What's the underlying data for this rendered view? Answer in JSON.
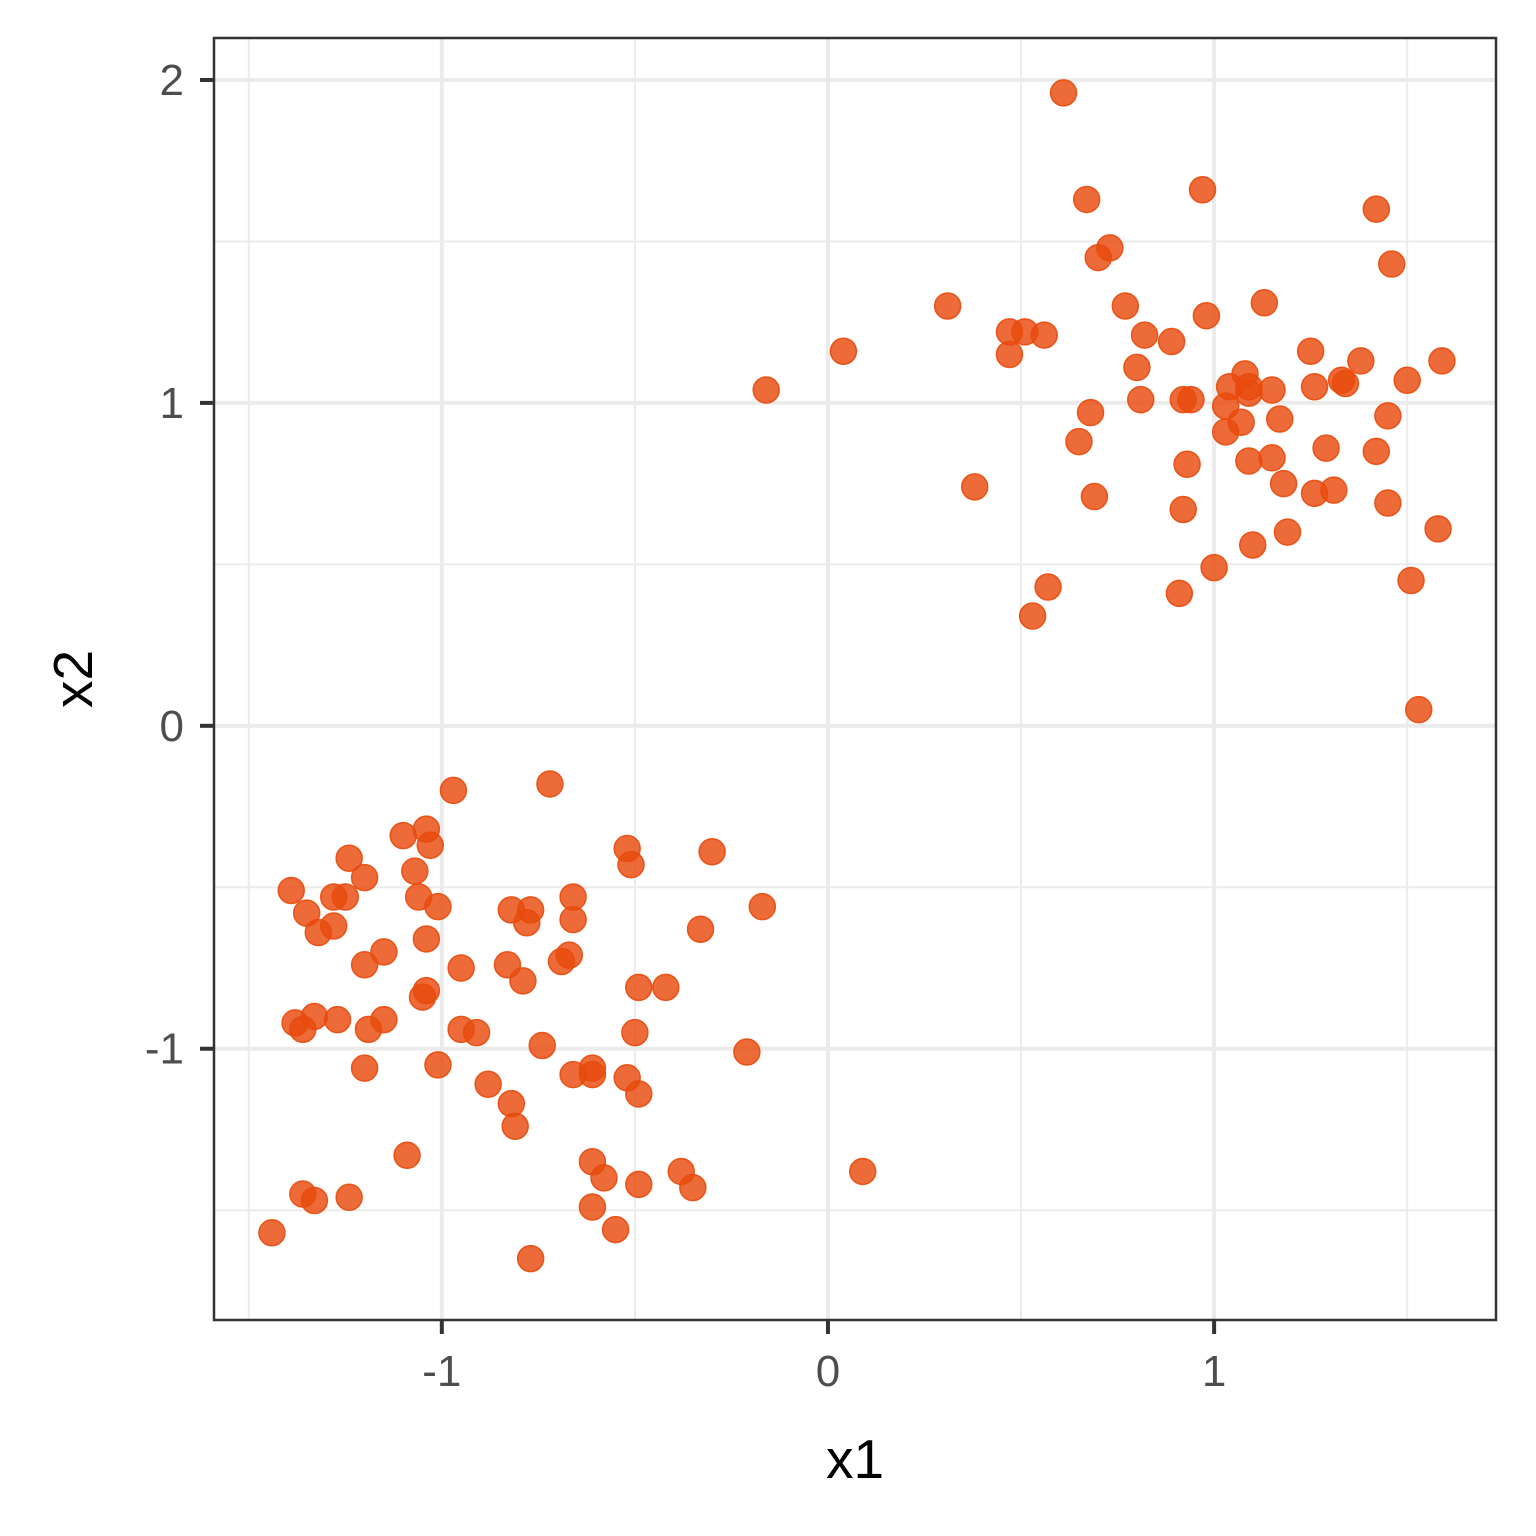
{
  "chart_data": {
    "type": "scatter",
    "xlabel": "x1",
    "ylabel": "x2",
    "xlim": [
      -1.59,
      1.73
    ],
    "ylim": [
      -1.84,
      2.13
    ],
    "x_ticks": [
      -1,
      0,
      1
    ],
    "y_ticks": [
      -1,
      0,
      1,
      2
    ],
    "x_tick_labels": [
      "-1",
      "0",
      "1"
    ],
    "y_tick_labels": [
      "-1",
      "0",
      "1",
      "2"
    ],
    "grid": true,
    "legend": "none",
    "point_color": "#E84A0C",
    "points": [
      [
        0.61,
        1.96
      ],
      [
        0.97,
        1.66
      ],
      [
        0.67,
        1.63
      ],
      [
        1.42,
        1.6
      ],
      [
        0.73,
        1.48
      ],
      [
        0.7,
        1.45
      ],
      [
        1.46,
        1.43
      ],
      [
        0.31,
        1.3
      ],
      [
        0.77,
        1.3
      ],
      [
        1.13,
        1.31
      ],
      [
        0.98,
        1.27
      ],
      [
        0.47,
        1.22
      ],
      [
        0.51,
        1.22
      ],
      [
        0.56,
        1.21
      ],
      [
        0.82,
        1.21
      ],
      [
        0.89,
        1.19
      ],
      [
        0.04,
        1.16
      ],
      [
        0.47,
        1.15
      ],
      [
        1.25,
        1.16
      ],
      [
        1.38,
        1.13
      ],
      [
        1.59,
        1.13
      ],
      [
        0.8,
        1.11
      ],
      [
        1.08,
        1.09
      ],
      [
        1.33,
        1.07
      ],
      [
        1.34,
        1.06
      ],
      [
        1.26,
        1.05
      ],
      [
        1.5,
        1.07
      ],
      [
        1.04,
        1.05
      ],
      [
        1.09,
        1.05
      ],
      [
        1.15,
        1.04
      ],
      [
        -0.16,
        1.04
      ],
      [
        0.81,
        1.01
      ],
      [
        0.92,
        1.01
      ],
      [
        0.94,
        1.01
      ],
      [
        1.03,
        0.99
      ],
      [
        1.09,
        1.03
      ],
      [
        1.07,
        0.94
      ],
      [
        0.68,
        0.97
      ],
      [
        1.17,
        0.95
      ],
      [
        1.45,
        0.96
      ],
      [
        1.03,
        0.91
      ],
      [
        0.65,
        0.88
      ],
      [
        1.29,
        0.86
      ],
      [
        1.42,
        0.85
      ],
      [
        1.15,
        0.83
      ],
      [
        0.93,
        0.81
      ],
      [
        1.09,
        0.82
      ],
      [
        0.38,
        0.74
      ],
      [
        1.18,
        0.75
      ],
      [
        1.31,
        0.73
      ],
      [
        1.26,
        0.72
      ],
      [
        0.69,
        0.71
      ],
      [
        1.45,
        0.69
      ],
      [
        0.92,
        0.67
      ],
      [
        1.58,
        0.61
      ],
      [
        1.19,
        0.6
      ],
      [
        1.1,
        0.56
      ],
      [
        1.0,
        0.49
      ],
      [
        0.57,
        0.43
      ],
      [
        1.51,
        0.45
      ],
      [
        0.91,
        0.41
      ],
      [
        0.53,
        0.34
      ],
      [
        1.53,
        0.05
      ],
      [
        -0.72,
        -0.18
      ],
      [
        -0.97,
        -0.2
      ],
      [
        -1.04,
        -0.32
      ],
      [
        -1.1,
        -0.34
      ],
      [
        -1.03,
        -0.37
      ],
      [
        -0.52,
        -0.38
      ],
      [
        -0.3,
        -0.39
      ],
      [
        -1.24,
        -0.41
      ],
      [
        -0.51,
        -0.43
      ],
      [
        -1.07,
        -0.45
      ],
      [
        -1.2,
        -0.47
      ],
      [
        -1.39,
        -0.51
      ],
      [
        -1.25,
        -0.53
      ],
      [
        -1.28,
        -0.53
      ],
      [
        -0.66,
        -0.53
      ],
      [
        -1.06,
        -0.53
      ],
      [
        -1.01,
        -0.56
      ],
      [
        -0.82,
        -0.57
      ],
      [
        -0.77,
        -0.57
      ],
      [
        -0.17,
        -0.56
      ],
      [
        -1.35,
        -0.58
      ],
      [
        -0.66,
        -0.6
      ],
      [
        -0.78,
        -0.61
      ],
      [
        -1.28,
        -0.62
      ],
      [
        -1.32,
        -0.64
      ],
      [
        -0.33,
        -0.63
      ],
      [
        -1.04,
        -0.66
      ],
      [
        -1.15,
        -0.7
      ],
      [
        -0.67,
        -0.71
      ],
      [
        -0.69,
        -0.73
      ],
      [
        -1.2,
        -0.74
      ],
      [
        -0.83,
        -0.74
      ],
      [
        -0.95,
        -0.75
      ],
      [
        -0.79,
        -0.79
      ],
      [
        -0.49,
        -0.81
      ],
      [
        -0.42,
        -0.81
      ],
      [
        -1.04,
        -0.82
      ],
      [
        -1.05,
        -0.84
      ],
      [
        -1.33,
        -0.9
      ],
      [
        -1.38,
        -0.92
      ],
      [
        -1.27,
        -0.91
      ],
      [
        -1.15,
        -0.91
      ],
      [
        -1.36,
        -0.94
      ],
      [
        -1.19,
        -0.94
      ],
      [
        -0.95,
        -0.94
      ],
      [
        -0.91,
        -0.95
      ],
      [
        -0.5,
        -0.95
      ],
      [
        -0.74,
        -0.99
      ],
      [
        -0.21,
        -1.01
      ],
      [
        -1.01,
        -1.05
      ],
      [
        -1.2,
        -1.06
      ],
      [
        -0.61,
        -1.06
      ],
      [
        -0.66,
        -1.08
      ],
      [
        -0.61,
        -1.08
      ],
      [
        -0.52,
        -1.09
      ],
      [
        -0.88,
        -1.11
      ],
      [
        -0.49,
        -1.14
      ],
      [
        -0.82,
        -1.17
      ],
      [
        -0.81,
        -1.24
      ],
      [
        -1.09,
        -1.33
      ],
      [
        -0.61,
        -1.35
      ],
      [
        0.09,
        -1.38
      ],
      [
        -0.38,
        -1.38
      ],
      [
        -0.58,
        -1.4
      ],
      [
        -0.49,
        -1.42
      ],
      [
        -0.35,
        -1.43
      ],
      [
        -1.36,
        -1.45
      ],
      [
        -1.24,
        -1.46
      ],
      [
        -1.33,
        -1.47
      ],
      [
        -0.61,
        -1.49
      ],
      [
        -1.44,
        -1.57
      ],
      [
        -0.55,
        -1.56
      ],
      [
        -0.77,
        -1.65
      ]
    ]
  }
}
